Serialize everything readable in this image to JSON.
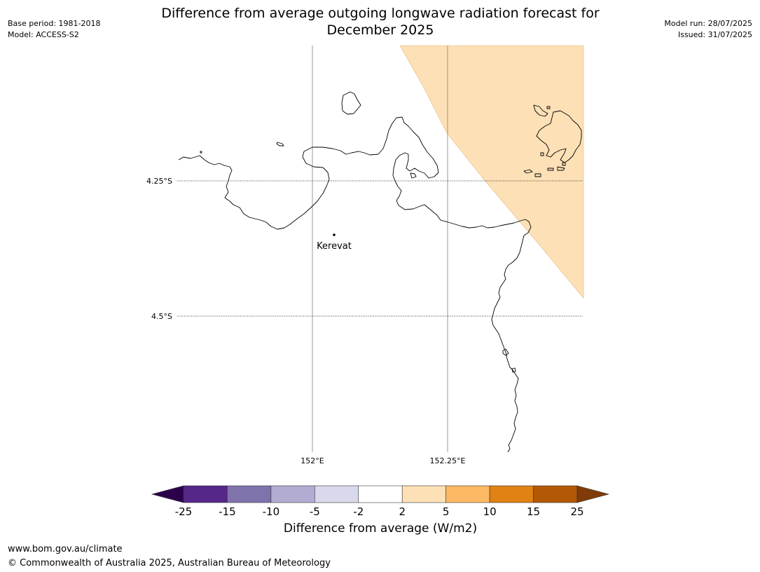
{
  "header": {
    "title_line1": "Difference from average outgoing longwave radiation forecast for",
    "title_line2": "December 2025",
    "base_period": "Base period: 1981-2018",
    "model": "Model: ACCESS-S2",
    "model_run": "Model run: 28/07/2025",
    "issued": "Issued: 31/07/2025"
  },
  "map": {
    "lon_labels": [
      "152°E",
      "152.25°E"
    ],
    "lat_labels": [
      "4.25°S",
      "4.5°S"
    ],
    "places": [
      {
        "name": "Kerevat"
      }
    ],
    "anomaly_fill_color": "#fde0b6",
    "coastline_color": "#000000",
    "gridline_color": "#808080"
  },
  "colorbar": {
    "ticks": [
      "-25",
      "-15",
      "-10",
      "-5",
      "-2",
      "2",
      "5",
      "10",
      "15",
      "25"
    ],
    "colors": {
      "under": "#2d004b",
      "bins": [
        "#542788",
        "#8073ac",
        "#b2abd2",
        "#d8daeb",
        "#ffffff",
        "#fee0b6",
        "#fdb863",
        "#e08214",
        "#b35806"
      ],
      "over": "#7f3b08"
    },
    "label": "Difference from average (W/m2)"
  },
  "footer": {
    "url": "www.bom.gov.au/climate",
    "copyright": "© Commonwealth of Australia 2025, Australian Bureau of Meteorology"
  }
}
